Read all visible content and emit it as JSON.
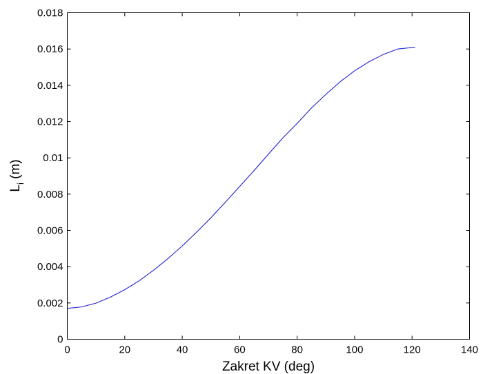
{
  "chart_data": {
    "type": "line",
    "xlabel": "Zakret KV (deg)",
    "ylabel": {
      "main": "L",
      "subscript": "i",
      "suffix": " (m)"
    },
    "xlim": [
      0,
      140
    ],
    "ylim": [
      0,
      0.018
    ],
    "xticks": [
      "0",
      "20",
      "40",
      "60",
      "80",
      "100",
      "120",
      "140"
    ],
    "yticks": [
      "0",
      "0.002",
      "0.004",
      "0.006",
      "0.008",
      "0.01",
      "0.012",
      "0.014",
      "0.016",
      "0.018"
    ],
    "grid": false,
    "series": [
      {
        "color": "#1f1fd6",
        "x": [
          0,
          5,
          10,
          15,
          20,
          25,
          30,
          35,
          40,
          45,
          50,
          55,
          60,
          65,
          70,
          75,
          80,
          85,
          90,
          95,
          100,
          105,
          110,
          115,
          121
        ],
        "y": [
          0.0017,
          0.00178,
          0.00199,
          0.00232,
          0.00273,
          0.00322,
          0.0038,
          0.00444,
          0.00514,
          0.0059,
          0.0067,
          0.00755,
          0.00842,
          0.0093,
          0.0102,
          0.0111,
          0.0119,
          0.01275,
          0.0135,
          0.0142,
          0.0148,
          0.0153,
          0.0157,
          0.016,
          0.0161
        ]
      }
    ]
  }
}
